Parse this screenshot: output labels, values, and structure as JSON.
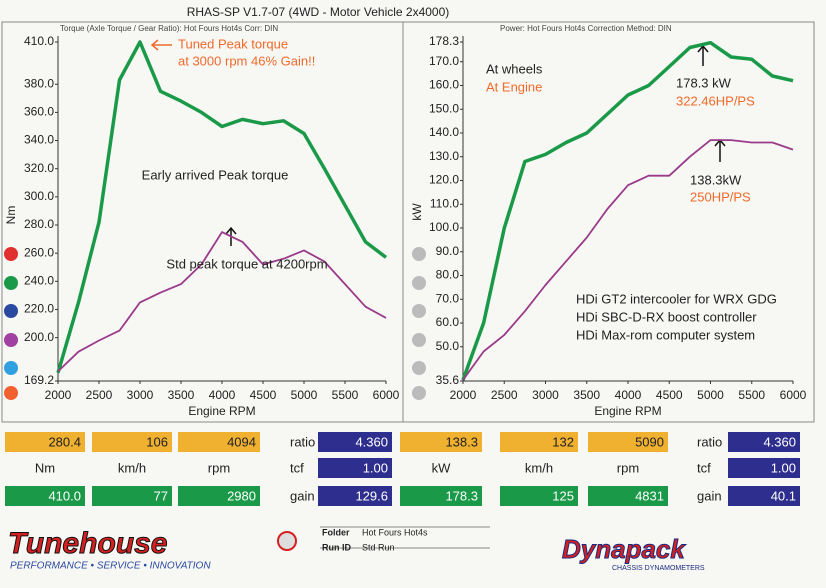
{
  "header": {
    "title": "RHAS-SP V1.7-07  (4WD - Motor Vehicle 2x4000)",
    "left_info": "Torque (Axle Torque / Gear Ratio): Hot Fours Hot4s   Corr: DIN",
    "right_info": "Power: Hot Fours Hot4s   Correction Method: DIN"
  },
  "chart_data": [
    {
      "type": "line",
      "ylabel": "Nm",
      "xlabel": "Engine RPM",
      "x": [
        2000,
        2250,
        2500,
        2750,
        3000,
        3250,
        3500,
        3750,
        4000,
        4250,
        4500,
        4750,
        5000,
        5250,
        5500,
        5750,
        6000
      ],
      "xlim": [
        2000,
        6000
      ],
      "xticks": [
        2000,
        2500,
        3000,
        3500,
        4000,
        4500,
        5000,
        5500,
        6000
      ],
      "ylim": [
        169.2,
        410
      ],
      "yticks": [
        169.2,
        {
          "value": 200,
          "label": "200.0"
        },
        {
          "value": 220,
          "label": "220.0"
        },
        {
          "value": 240,
          "label": "240.0"
        },
        {
          "value": 260,
          "label": "260.0"
        },
        {
          "value": 280,
          "label": "280.0"
        },
        {
          "value": 300,
          "label": "300.0"
        },
        {
          "value": 320,
          "label": "320.0"
        },
        {
          "value": 340,
          "label": "340.0"
        },
        {
          "value": 360,
          "label": "360.0"
        },
        {
          "value": 380,
          "label": "380.0"
        },
        {
          "value": 410,
          "label": "410.0"
        }
      ],
      "series": [
        {
          "color": "#1a9a48",
          "values": [
            175,
            225,
            282,
            383,
            410,
            375,
            368,
            360,
            350,
            355,
            352,
            354,
            345,
            320,
            294,
            268,
            257
          ]
        },
        {
          "color": "#9a3a8a",
          "values": [
            176,
            190,
            198,
            205,
            225,
            232,
            238,
            252,
            275,
            268,
            252,
            256,
            262,
            254,
            238,
            222,
            214
          ]
        }
      ],
      "annotations": [
        {
          "text": "Tuned Peak torque",
          "color": "#f06a2a"
        },
        {
          "text": "at 3000 rpm 46% Gain!!",
          "color": "#f06a2a"
        },
        {
          "text": "Early arrived Peak torque",
          "color": "#222222"
        },
        {
          "text": "Std peak torque at 4200rpm",
          "color": "#222222"
        }
      ]
    },
    {
      "type": "line",
      "ylabel": "kW",
      "xlabel": "Engine RPM",
      "x": [
        2000,
        2250,
        2500,
        2750,
        3000,
        3250,
        3500,
        3750,
        4000,
        4250,
        4500,
        4750,
        5000,
        5250,
        5500,
        5750,
        6000
      ],
      "xlim": [
        2000,
        6000
      ],
      "xticks": [
        2000,
        2500,
        3000,
        3500,
        4000,
        4500,
        5000,
        5500,
        6000
      ],
      "ylim": [
        35.6,
        178.3
      ],
      "yticks": [
        35.6,
        {
          "value": 50,
          "label": "50.0"
        },
        {
          "value": 60,
          "label": "60.0"
        },
        {
          "value": 70,
          "label": "70.0"
        },
        {
          "value": 80,
          "label": "80.0"
        },
        {
          "value": 90,
          "label": "90.0"
        },
        {
          "value": 100,
          "label": "100.0"
        },
        {
          "value": 110,
          "label": "110.0"
        },
        {
          "value": 120,
          "label": "120.0"
        },
        {
          "value": 130,
          "label": "130.0"
        },
        {
          "value": 140,
          "label": "140.0"
        },
        {
          "value": 150,
          "label": "150.0"
        },
        {
          "value": 160,
          "label": "160.0"
        },
        {
          "value": 170,
          "label": "170.0"
        },
        178.3
      ],
      "series": [
        {
          "color": "#1a9a48",
          "values": [
            36,
            60,
            100,
            128,
            131,
            136,
            140,
            148,
            156,
            160,
            168,
            176,
            178,
            172,
            171,
            164,
            162
          ]
        },
        {
          "color": "#9a3a8a",
          "values": [
            36,
            48,
            55,
            65,
            76,
            86,
            96,
            108,
            118,
            122,
            122,
            130,
            137,
            137,
            136,
            136,
            133
          ]
        }
      ],
      "annotations": [
        {
          "text": "At wheels",
          "color": "#222222"
        },
        {
          "text": "At Engine",
          "color": "#f06a2a"
        },
        {
          "text": "178.3 kW",
          "color": "#222222"
        },
        {
          "text": "322.46HP/PS",
          "color": "#f06a2a"
        },
        {
          "text": "138.3kW",
          "color": "#222222"
        },
        {
          "text": "250HP/PS",
          "color": "#f06a2a"
        },
        {
          "text": "HDi GT2 intercooler for WRX GDG",
          "color": "#222222"
        },
        {
          "text": "HDi SBC-D-RX boost controller",
          "color": "#222222"
        },
        {
          "text": "HDi Max-rom computer system",
          "color": "#222222"
        }
      ]
    }
  ],
  "readouts": [
    {
      "rows": [
        [
          "280.4",
          "106",
          "4094",
          "ratio",
          "4.360"
        ],
        [
          "Nm",
          "km/h",
          "rpm",
          "tcf",
          "1.00"
        ],
        [
          "410.0",
          "77",
          "2980",
          "gain",
          "129.6"
        ]
      ]
    },
    {
      "rows": [
        [
          "138.3",
          "132",
          "5090",
          "ratio",
          "4.360"
        ],
        [
          "kW",
          "km/h",
          "rpm",
          "tcf",
          "1.00"
        ],
        [
          "178.3",
          "125",
          "4831",
          "gain",
          "40.1"
        ]
      ]
    }
  ],
  "footer": {
    "brand": "Tunehouse",
    "tagline": "PERFORMANCE • SERVICE • INNOVATION",
    "folder_label": "Folder",
    "folder": "Hot Fours Hot4s",
    "runid_label": "Run ID",
    "runid": "Std Run",
    "dyno_brand": "Dynapack",
    "dyno_sub": "CHASSIS DYNAMOMETERS"
  }
}
